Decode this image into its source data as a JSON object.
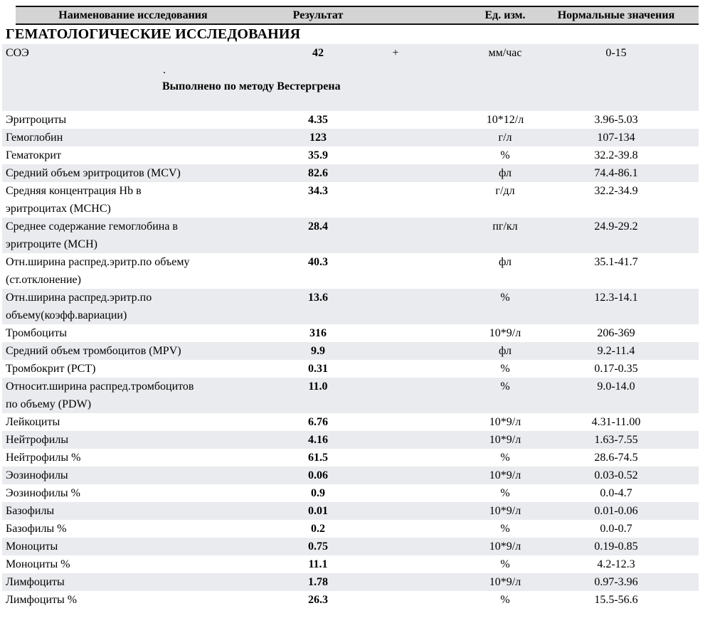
{
  "header": {
    "col_name": "Наименование исследования",
    "col_result": "Результат",
    "col_units": "Ед. изм.",
    "col_range": "Нормальные значения"
  },
  "section_title": "ГЕМАТОЛОГИЧЕСКИЕ ИССЛЕДОВАНИЯ",
  "colors": {
    "header_bg": "#d4d4d4",
    "row_shaded_bg": "#eaebee",
    "border": "#111111"
  },
  "soe_block": {
    "name": "СОЭ",
    "result": "42",
    "flag": "+",
    "units": "мм/час",
    "range": "0-15",
    "note_dot": ".",
    "method_note": "Выполнено по методу Вестергрена"
  },
  "rows": [
    {
      "name": "Эритроциты",
      "name2": "",
      "result": "4.35",
      "units": "10*12/л",
      "range": "3.96-5.03",
      "shaded": false
    },
    {
      "name": "Гемоглобин",
      "name2": "",
      "result": "123",
      "units": "г/л",
      "range": "107-134",
      "shaded": true
    },
    {
      "name": "Гематокрит",
      "name2": "",
      "result": "35.9",
      "units": "%",
      "range": "32.2-39.8",
      "shaded": false
    },
    {
      "name": "Средний объем эритроцитов (MCV)",
      "name2": "",
      "result": "82.6",
      "units": "фл",
      "range": "74.4-86.1",
      "shaded": true
    },
    {
      "name": "Средняя концентрация Hb в",
      "name2": "эритроцитах (MCHC)",
      "result": "34.3",
      "units": "г/дл",
      "range": "32.2-34.9",
      "shaded": false
    },
    {
      "name": "Среднее содержание гемоглобина в",
      "name2": "эритроците (MCH)",
      "result": "28.4",
      "units": "пг/кл",
      "range": "24.9-29.2",
      "shaded": true
    },
    {
      "name": "Отн.ширина распред.эритр.по объему",
      "name2": "(ст.отклонение)",
      "result": "40.3",
      "units": "фл",
      "range": "35.1-41.7",
      "shaded": false
    },
    {
      "name": "Отн.ширина распред.эритр.по",
      "name2": "объему(коэфф.вариации)",
      "result": "13.6",
      "units": "%",
      "range": "12.3-14.1",
      "shaded": true
    },
    {
      "name": "Тромбоциты",
      "name2": "",
      "result": "316",
      "units": "10*9/л",
      "range": "206-369",
      "shaded": false
    },
    {
      "name": "Средний объем тромбоцитов (MPV)",
      "name2": "",
      "result": "9.9",
      "units": "фл",
      "range": "9.2-11.4",
      "shaded": true
    },
    {
      "name": "Тромбокрит (PCT)",
      "name2": "",
      "result": "0.31",
      "units": "%",
      "range": "0.17-0.35",
      "shaded": false
    },
    {
      "name": "Относит.ширина распред.тромбоцитов",
      "name2": "по объему (PDW)",
      "result": "11.0",
      "units": "%",
      "range": "9.0-14.0",
      "shaded": true
    },
    {
      "name": "Лейкоциты",
      "name2": "",
      "result": "6.76",
      "units": "10*9/л",
      "range": "4.31-11.00",
      "shaded": false
    },
    {
      "name": "Нейтрофилы",
      "name2": "",
      "result": "4.16",
      "units": "10*9/л",
      "range": "1.63-7.55",
      "shaded": true
    },
    {
      "name": "Нейтрофилы %",
      "name2": "",
      "result": "61.5",
      "units": "%",
      "range": "28.6-74.5",
      "shaded": false
    },
    {
      "name": "Эозинофилы",
      "name2": "",
      "result": "0.06",
      "units": "10*9/л",
      "range": "0.03-0.52",
      "shaded": true
    },
    {
      "name": "Эозинофилы %",
      "name2": "",
      "result": "0.9",
      "units": "%",
      "range": "0.0-4.7",
      "shaded": false
    },
    {
      "name": "Базофилы",
      "name2": "",
      "result": "0.01",
      "units": "10*9/л",
      "range": "0.01-0.06",
      "shaded": true
    },
    {
      "name": "Базофилы %",
      "name2": "",
      "result": "0.2",
      "units": "%",
      "range": "0.0-0.7",
      "shaded": false
    },
    {
      "name": "Моноциты",
      "name2": "",
      "result": "0.75",
      "units": "10*9/л",
      "range": "0.19-0.85",
      "shaded": true
    },
    {
      "name": "Моноциты %",
      "name2": "",
      "result": "11.1",
      "units": "%",
      "range": "4.2-12.3",
      "shaded": false
    },
    {
      "name": "Лимфоциты",
      "name2": "",
      "result": "1.78",
      "units": "10*9/л",
      "range": "0.97-3.96",
      "shaded": true
    },
    {
      "name": "Лимфоциты %",
      "name2": "",
      "result": "26.3",
      "units": "%",
      "range": "15.5-56.6",
      "shaded": false
    }
  ]
}
